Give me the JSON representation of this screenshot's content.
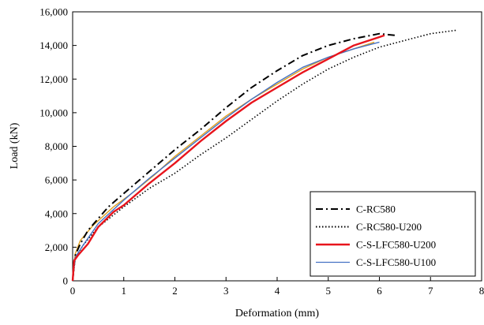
{
  "chart_data": {
    "type": "line",
    "title": "",
    "xlabel": "Deformation (mm)",
    "ylabel": "Load (kN)",
    "xlim": [
      0,
      8
    ],
    "ylim": [
      0,
      16000
    ],
    "x_ticks": [
      "0",
      "1",
      "2",
      "3",
      "4",
      "5",
      "6",
      "7",
      "8"
    ],
    "y_ticks": [
      "0",
      "2,000",
      "4,000",
      "6,000",
      "8,000",
      "10,000",
      "12,000",
      "14,000",
      "16,000"
    ],
    "grid": false,
    "legend_position": "bottom-right",
    "series": [
      {
        "name": "C-RC580",
        "color": "#000000",
        "dash": "dash-dot",
        "points": [
          [
            0,
            0
          ],
          [
            0.05,
            1500
          ],
          [
            0.15,
            2200
          ],
          [
            0.3,
            3000
          ],
          [
            0.5,
            3700
          ],
          [
            0.7,
            4400
          ],
          [
            1.0,
            5200
          ],
          [
            1.5,
            6500
          ],
          [
            2.0,
            7800
          ],
          [
            2.5,
            9000
          ],
          [
            3.0,
            10300
          ],
          [
            3.5,
            11500
          ],
          [
            4.0,
            12500
          ],
          [
            4.5,
            13400
          ],
          [
            5.0,
            14000
          ],
          [
            5.5,
            14400
          ],
          [
            6.0,
            14700
          ],
          [
            6.3,
            14600
          ]
        ]
      },
      {
        "name": "C-RC580-U200",
        "color": "#000000",
        "dash": "dotted",
        "points": [
          [
            0,
            0
          ],
          [
            0.05,
            1300
          ],
          [
            0.2,
            2100
          ],
          [
            0.5,
            3200
          ],
          [
            1.0,
            4400
          ],
          [
            1.5,
            5500
          ],
          [
            2.0,
            6400
          ],
          [
            2.5,
            7500
          ],
          [
            3.0,
            8500
          ],
          [
            3.5,
            9600
          ],
          [
            4.0,
            10700
          ],
          [
            4.5,
            11700
          ],
          [
            5.0,
            12600
          ],
          [
            5.5,
            13300
          ],
          [
            6.0,
            13900
          ],
          [
            6.5,
            14300
          ],
          [
            7.0,
            14700
          ],
          [
            7.5,
            14900
          ]
        ]
      },
      {
        "name": "C-S-LFC580-U200",
        "color": "#e8141c",
        "dash": "solid",
        "points": [
          [
            0,
            0
          ],
          [
            0.03,
            1200
          ],
          [
            0.1,
            1500
          ],
          [
            0.3,
            2200
          ],
          [
            0.5,
            3200
          ],
          [
            0.8,
            4100
          ],
          [
            1.0,
            4500
          ],
          [
            1.5,
            5800
          ],
          [
            2.0,
            7000
          ],
          [
            2.5,
            8300
          ],
          [
            3.0,
            9500
          ],
          [
            3.5,
            10600
          ],
          [
            4.0,
            11500
          ],
          [
            4.5,
            12400
          ],
          [
            5.0,
            13200
          ],
          [
            5.5,
            14000
          ],
          [
            6.0,
            14500
          ],
          [
            6.1,
            14600
          ]
        ]
      },
      {
        "name": "C-S-LFC580-U100",
        "color": "#4472c4",
        "dash": "solid",
        "points": [
          [
            0,
            0
          ],
          [
            0.05,
            1400
          ],
          [
            0.2,
            2100
          ],
          [
            0.5,
            3400
          ],
          [
            1.0,
            4800
          ],
          [
            1.5,
            6100
          ],
          [
            2.0,
            7300
          ],
          [
            2.5,
            8500
          ],
          [
            3.0,
            9700
          ],
          [
            3.5,
            10800
          ],
          [
            4.0,
            11800
          ],
          [
            4.5,
            12700
          ],
          [
            5.0,
            13300
          ],
          [
            5.5,
            13800
          ],
          [
            6.0,
            14200
          ]
        ]
      },
      {
        "name": "",
        "color": "#e0a020",
        "dash": "solid",
        "points": [
          [
            0,
            0
          ],
          [
            0.05,
            1600
          ],
          [
            0.15,
            2400
          ],
          [
            0.4,
            3300
          ],
          [
            0.8,
            4400
          ],
          [
            1.2,
            5300
          ],
          [
            1.6,
            6300
          ],
          [
            2.0,
            7400
          ],
          [
            2.5,
            8600
          ],
          [
            3.0,
            9800
          ],
          [
            3.5,
            10800
          ],
          [
            4.0,
            11700
          ],
          [
            4.5,
            12600
          ],
          [
            5.0,
            13300
          ],
          [
            5.5,
            13800
          ],
          [
            5.9,
            14200
          ]
        ]
      }
    ]
  }
}
